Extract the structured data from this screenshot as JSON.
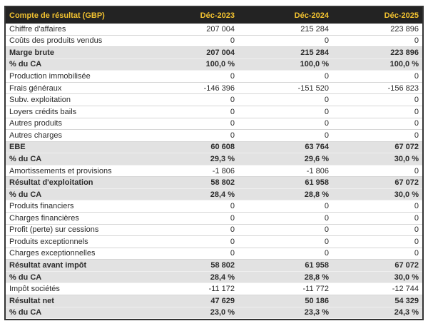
{
  "colors": {
    "accent_yellow": "#f2c230",
    "header_bg": "#232323",
    "emphasis_row_bg": "#e2e2e2",
    "table_border": "#333333",
    "row_divider": "#d6d6d6",
    "text": "#2b2b2b"
  },
  "chart_data": {
    "type": "table",
    "title": "Compte de résultat (GBP)",
    "columns": [
      "Déc-2023",
      "Déc-2024",
      "Déc-2025"
    ],
    "rows": [
      {
        "label": "Chiffre d'affaires",
        "values": [
          "207 004",
          "215 284",
          "223 896"
        ],
        "emphasis": false
      },
      {
        "label": "Coûts des produits vendus",
        "values": [
          "0",
          "0",
          "0"
        ],
        "emphasis": false
      },
      {
        "label": "Marge brute",
        "values": [
          "207 004",
          "215 284",
          "223 896"
        ],
        "emphasis": true
      },
      {
        "label": "% du CA",
        "values": [
          "100,0 %",
          "100,0 %",
          "100,0 %"
        ],
        "emphasis": true
      },
      {
        "label": "Production immobilisée",
        "values": [
          "0",
          "0",
          "0"
        ],
        "emphasis": false
      },
      {
        "label": "Frais généraux",
        "values": [
          "-146 396",
          "-151 520",
          "-156 823"
        ],
        "emphasis": false
      },
      {
        "label": "Subv. exploitation",
        "values": [
          "0",
          "0",
          "0"
        ],
        "emphasis": false
      },
      {
        "label": "Loyers crédits bails",
        "values": [
          "0",
          "0",
          "0"
        ],
        "emphasis": false
      },
      {
        "label": "Autres produits",
        "values": [
          "0",
          "0",
          "0"
        ],
        "emphasis": false
      },
      {
        "label": "Autres charges",
        "values": [
          "0",
          "0",
          "0"
        ],
        "emphasis": false
      },
      {
        "label": "EBE",
        "values": [
          "60 608",
          "63 764",
          "67 072"
        ],
        "emphasis": true
      },
      {
        "label": "% du CA",
        "values": [
          "29,3 %",
          "29,6 %",
          "30,0 %"
        ],
        "emphasis": true
      },
      {
        "label": "Amortissements et provisions",
        "values": [
          "-1 806",
          "-1 806",
          "0"
        ],
        "emphasis": false
      },
      {
        "label": "Résultat d'exploitation",
        "values": [
          "58 802",
          "61 958",
          "67 072"
        ],
        "emphasis": true
      },
      {
        "label": "% du CA",
        "values": [
          "28,4 %",
          "28,8 %",
          "30,0 %"
        ],
        "emphasis": true
      },
      {
        "label": "Produits financiers",
        "values": [
          "0",
          "0",
          "0"
        ],
        "emphasis": false
      },
      {
        "label": "Charges financières",
        "values": [
          "0",
          "0",
          "0"
        ],
        "emphasis": false
      },
      {
        "label": "Profit (perte) sur cessions",
        "values": [
          "0",
          "0",
          "0"
        ],
        "emphasis": false
      },
      {
        "label": "Produits exceptionnels",
        "values": [
          "0",
          "0",
          "0"
        ],
        "emphasis": false
      },
      {
        "label": "Charges exceptionnelles",
        "values": [
          "0",
          "0",
          "0"
        ],
        "emphasis": false
      },
      {
        "label": "Résultat avant impôt",
        "values": [
          "58 802",
          "61 958",
          "67 072"
        ],
        "emphasis": true
      },
      {
        "label": "% du CA",
        "values": [
          "28,4 %",
          "28,8 %",
          "30,0 %"
        ],
        "emphasis": true
      },
      {
        "label": "Impôt sociétés",
        "values": [
          "-11 172",
          "-11 772",
          "-12 744"
        ],
        "emphasis": false
      },
      {
        "label": "Résultat net",
        "values": [
          "47 629",
          "50 186",
          "54 329"
        ],
        "emphasis": true
      },
      {
        "label": "% du CA",
        "values": [
          "23,0 %",
          "23,3 %",
          "24,3 %"
        ],
        "emphasis": true
      }
    ]
  }
}
